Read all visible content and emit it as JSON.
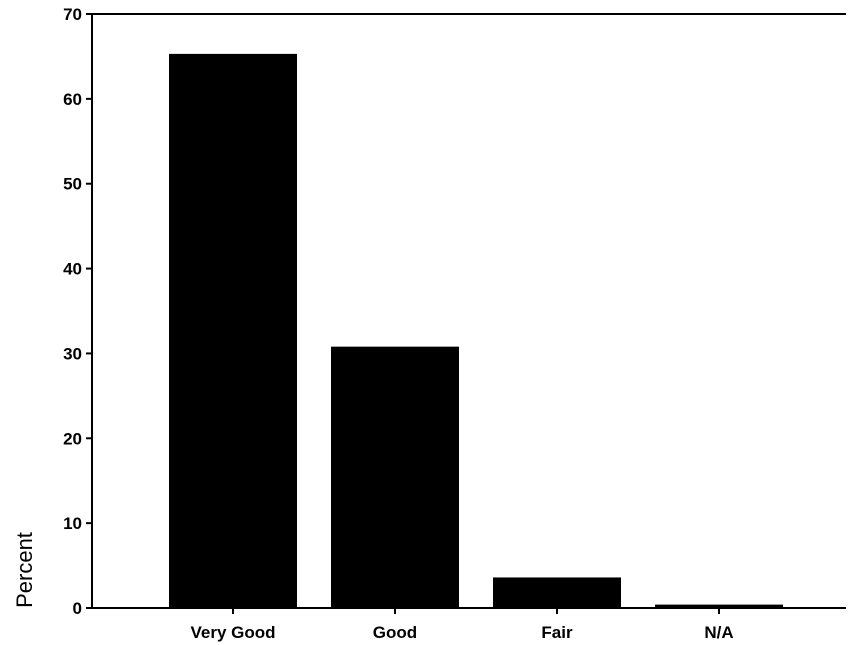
{
  "chart_data": {
    "type": "bar",
    "title": "",
    "xlabel": "",
    "ylabel": "Percent",
    "categories": [
      "Very Good",
      "Good",
      "Fair",
      "N/A"
    ],
    "values": [
      65.3,
      30.8,
      3.6,
      0.4
    ],
    "ylim": [
      0,
      70
    ],
    "yticks": [
      "0",
      "10",
      "20",
      "30",
      "40",
      "50",
      "60",
      "70"
    ],
    "grid": false,
    "legend": "none",
    "bar_color": "#000000"
  }
}
